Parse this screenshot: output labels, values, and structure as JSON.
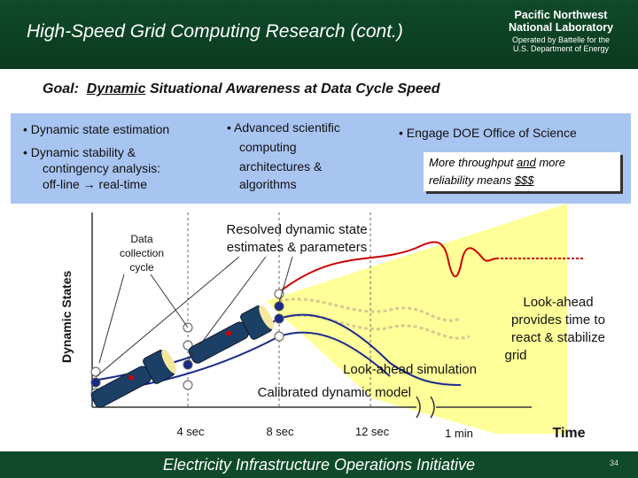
{
  "header": {
    "title": "High-Speed Grid Computing Research (cont.)",
    "logo": {
      "line1": "Pacific Northwest",
      "line2": "National Laboratory",
      "line3": "Operated by Battelle for the",
      "line4": "U.S. Department of Energy"
    }
  },
  "goal": {
    "prefix": "Goal:",
    "emph": "Dynamic",
    "rest": "Situational Awareness at Data Cycle Speed"
  },
  "bullets": {
    "col1_item1": "• Dynamic state estimation",
    "col1_item2_line1": "• Dynamic stability &",
    "col1_item2_line2": "contingency analysis:",
    "col1_item2_line3": "off-line → real-time",
    "col2_line1": "• Advanced scientific",
    "col2_line2": "computing",
    "col2_line3": "architectures &",
    "col2_line4": "algorithms",
    "col3": "• Engage DOE Office of Science"
  },
  "box": {
    "line1_pre": "More throughput ",
    "line1_u": "and",
    "line1_post": " more",
    "line2_pre": "reliability means ",
    "line2_u": "$$$"
  },
  "diagram": {
    "y_axis_label": "Dynamic States",
    "data_cycle_line1": "Data",
    "data_cycle_line2": "collection",
    "data_cycle_line3": "cycle",
    "resolved_line1": "Resolved dynamic state",
    "resolved_line2": "estimates & parameters",
    "lookahead_sim": "Look-ahead simulation",
    "calibrated": "Calibrated dynamic model",
    "lookahead_note_line1": "Look-ahead",
    "lookahead_note_line2": "provides time to",
    "lookahead_note_line3": "react & stabilize",
    "lookahead_note_line4": "grid",
    "tick1": "4 sec",
    "tick2": "8 sec",
    "tick3": "12 sec",
    "tick4": "1 min",
    "x_axis_label": "Time",
    "colors": {
      "beam": "#ffff99",
      "dashed_curve": "#e8e0a0",
      "red_curve": "#cc0000",
      "blue_curve": "#1a2a8a",
      "flashlight": "#1c3f66"
    }
  },
  "footer": {
    "text": "Electricity Infrastructure Operations Initiative",
    "page": "34"
  }
}
